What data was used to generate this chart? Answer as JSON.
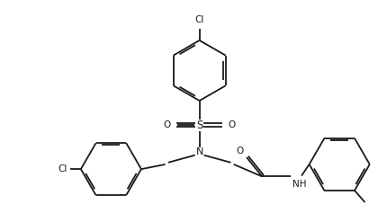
{
  "bg_color": "#ffffff",
  "line_color": "#1a1a1a",
  "lw": 1.3,
  "dbo": 0.055,
  "figsize": [
    4.31,
    2.47
  ],
  "dpi": 100,
  "xlim": [
    0,
    10
  ],
  "ylim": [
    0,
    6
  ]
}
